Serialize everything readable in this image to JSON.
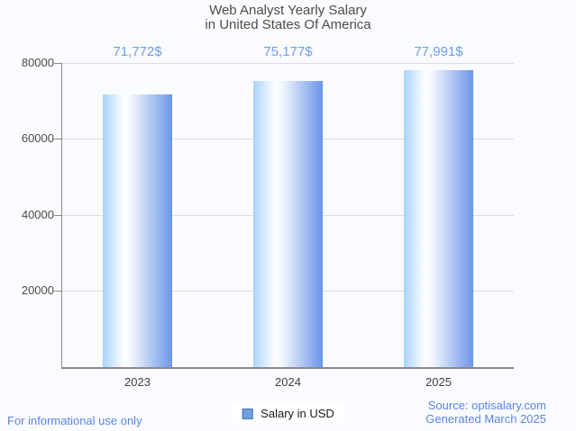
{
  "title": {
    "line1": "Web Analyst Yearly Salary",
    "line2": "in United States Of America"
  },
  "chart_data": {
    "type": "bar",
    "categories": [
      "2023",
      "2024",
      "2025"
    ],
    "values": [
      71772,
      75177,
      77991
    ],
    "value_labels": [
      "71,772$",
      "75,177$",
      "77,991$"
    ],
    "series_name": "Salary in USD",
    "ylim": [
      0,
      80000
    ],
    "yticks": [
      20000,
      40000,
      60000,
      80000
    ],
    "grid": true,
    "legend_position": "bottom"
  },
  "legend": {
    "label": "Salary in USD"
  },
  "footer": {
    "left": "For informational use only",
    "source": "Source: optisalary.com",
    "generated": "Generated March 2025"
  },
  "colors": {
    "title_text": "#4d4d4d",
    "data_label": "#6d9eeb",
    "footer_text": "#5b84e6",
    "bar_gradient_left": "#a9d3fb",
    "bar_gradient_mid": "#ffffff",
    "bar_gradient_right": "#6b95e9",
    "legend_swatch_fill": "#6fa0e0",
    "legend_swatch_border": "#4d74ae",
    "gridline": "#dcdce2",
    "axis": "#8a8a8a",
    "background": "#fafbfe"
  }
}
